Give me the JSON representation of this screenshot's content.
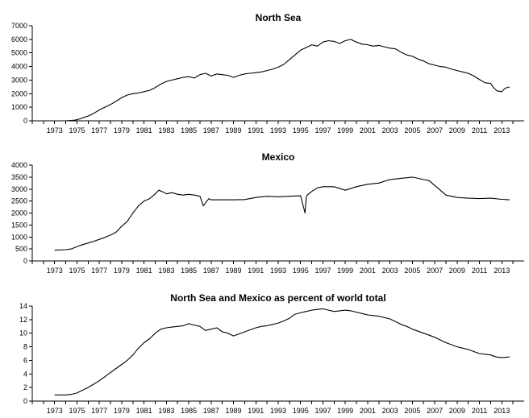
{
  "chart_data": [
    {
      "type": "line",
      "title": "North Sea",
      "xlabel": "",
      "ylabel": "",
      "xlim": [
        1971,
        2015
      ],
      "ylim": [
        0,
        7000
      ],
      "grid": false,
      "xticks": [
        1973,
        1975,
        1977,
        1979,
        1981,
        1983,
        1985,
        1987,
        1989,
        1991,
        1993,
        1995,
        1997,
        1999,
        2001,
        2003,
        2005,
        2007,
        2009,
        2011,
        2013
      ],
      "xtick_labels": [
        "1973",
        "1975",
        "1977",
        "1979",
        "1981",
        "1983",
        "1985",
        "1987",
        "1989",
        "1991",
        "1993",
        "1995",
        "1997",
        "1999",
        "2001",
        "2003",
        "2005",
        "2007",
        "2009",
        "2011",
        "2013"
      ],
      "yticks": [
        0,
        1000,
        2000,
        3000,
        4000,
        5000,
        6000,
        7000
      ],
      "ytick_labels": [
        "0",
        "1000",
        "2000",
        "3000",
        "4000",
        "5000",
        "6000",
        "7000"
      ],
      "series": [
        {
          "x": [
            1973,
            1974,
            1974.8,
            1975.3,
            1975.6,
            1976,
            1976.5,
            1977,
            1977.5,
            1978,
            1978.5,
            1979,
            1979.5,
            1980,
            1980.5,
            1981,
            1981.5,
            1982,
            1982.5,
            1983,
            1983.5,
            1984,
            1984.5,
            1985,
            1985.5,
            1986,
            1986.5,
            1987,
            1987.5,
            1988,
            1988.5,
            1989,
            1989.5,
            1990,
            1990.5,
            1991,
            1991.5,
            1992,
            1992.5,
            1993,
            1993.5,
            1994,
            1994.5,
            1995,
            1995.5,
            1996,
            1996.5,
            1997,
            1997.5,
            1998,
            1998.5,
            1999,
            1999.5,
            2000,
            2000.5,
            2001,
            2001.5,
            2002,
            2002.5,
            2003,
            2003.5,
            2004,
            2004.5,
            2005,
            2005.5,
            2006,
            2006.5,
            2007,
            2007.5,
            2008,
            2008.5,
            2009,
            2009.5,
            2010,
            2010.5,
            2011,
            2011.5,
            2012,
            2012.3,
            2012.6,
            2013,
            2013.3,
            2013.7
          ],
          "y": [
            0,
            0,
            50,
            150,
            250,
            350,
            550,
            800,
            1000,
            1200,
            1450,
            1700,
            1900,
            2000,
            2050,
            2150,
            2250,
            2450,
            2700,
            2900,
            3000,
            3100,
            3200,
            3250,
            3150,
            3400,
            3500,
            3300,
            3450,
            3400,
            3350,
            3200,
            3350,
            3450,
            3500,
            3550,
            3600,
            3700,
            3800,
            3950,
            4150,
            4500,
            4850,
            5200,
            5400,
            5600,
            5500,
            5800,
            5900,
            5850,
            5700,
            5900,
            6000,
            5800,
            5650,
            5600,
            5500,
            5550,
            5450,
            5350,
            5300,
            5050,
            4850,
            4750,
            4550,
            4400,
            4200,
            4100,
            4000,
            3950,
            3800,
            3700,
            3600,
            3500,
            3300,
            3050,
            2800,
            2750,
            2400,
            2200,
            2150,
            2400,
            2500
          ]
        }
      ]
    },
    {
      "type": "line",
      "title": "Mexico",
      "xlabel": "",
      "ylabel": "",
      "xlim": [
        1971,
        2015
      ],
      "ylim": [
        0,
        4000
      ],
      "grid": false,
      "xticks": [
        1973,
        1975,
        1977,
        1979,
        1981,
        1983,
        1985,
        1987,
        1989,
        1991,
        1993,
        1995,
        1997,
        1999,
        2001,
        2003,
        2005,
        2007,
        2009,
        2011,
        2013
      ],
      "xtick_labels": [
        "1973",
        "1975",
        "1977",
        "1979",
        "1981",
        "1983",
        "1985",
        "1987",
        "1989",
        "1991",
        "1993",
        "1995",
        "1997",
        "1999",
        "2001",
        "2003",
        "2005",
        "2007",
        "2009",
        "2011",
        "2013"
      ],
      "yticks": [
        0,
        500,
        1000,
        1500,
        2000,
        2500,
        3000,
        3500,
        4000
      ],
      "ytick_labels": [
        "0",
        "500",
        "1000",
        "1500",
        "2000",
        "2500",
        "3000",
        "3500",
        "4000"
      ],
      "series": [
        {
          "x": [
            1973,
            1974,
            1974.5,
            1975,
            1975.5,
            1976,
            1976.5,
            1977,
            1977.5,
            1978,
            1978.5,
            1979,
            1979.5,
            1980,
            1980.5,
            1981,
            1981.5,
            1982,
            1982.3,
            1982.6,
            1983,
            1983.5,
            1984,
            1984.5,
            1985,
            1985.5,
            1986,
            1986.3,
            1986.8,
            1987,
            1988,
            1989,
            1990,
            1991,
            1992,
            1993,
            1994,
            1995,
            1995.4,
            1995.5,
            1995.6,
            1996,
            1996.5,
            1997,
            1998,
            1999,
            2000,
            2001,
            2002,
            2003,
            2004,
            2005,
            2006,
            2006.5,
            2007,
            2007.5,
            2008,
            2008.5,
            2009,
            2010,
            2011,
            2012,
            2013,
            2013.7
          ],
          "y": [
            450,
            470,
            500,
            600,
            680,
            750,
            820,
            900,
            980,
            1080,
            1200,
            1450,
            1650,
            2000,
            2300,
            2500,
            2600,
            2800,
            2950,
            2900,
            2800,
            2850,
            2780,
            2750,
            2780,
            2750,
            2700,
            2300,
            2600,
            2550,
            2550,
            2550,
            2560,
            2650,
            2700,
            2680,
            2700,
            2720,
            2000,
            2650,
            2750,
            2900,
            3050,
            3100,
            3100,
            2950,
            3100,
            3200,
            3250,
            3400,
            3450,
            3500,
            3400,
            3350,
            3150,
            2950,
            2750,
            2700,
            2650,
            2620,
            2600,
            2620,
            2570,
            2550
          ]
        }
      ]
    },
    {
      "type": "line",
      "title": "North Sea and Mexico as percent of world total",
      "xlabel": "",
      "ylabel": "",
      "xlim": [
        1971,
        2015
      ],
      "ylim": [
        0,
        14
      ],
      "grid": false,
      "xticks": [
        1973,
        1975,
        1977,
        1979,
        1981,
        1983,
        1985,
        1987,
        1989,
        1991,
        1993,
        1995,
        1997,
        1999,
        2001,
        2003,
        2005,
        2007,
        2009,
        2011,
        2013
      ],
      "xtick_labels": [
        "1973",
        "1975",
        "1977",
        "1979",
        "1981",
        "1983",
        "1985",
        "1987",
        "1989",
        "1991",
        "1993",
        "1995",
        "1997",
        "1999",
        "2001",
        "2003",
        "2005",
        "2007",
        "2009",
        "2011",
        "2013"
      ],
      "yticks": [
        0,
        2,
        4,
        6,
        8,
        10,
        12,
        14
      ],
      "ytick_labels": [
        "0",
        "2",
        "4",
        "6",
        "8",
        "10",
        "12",
        "14"
      ],
      "series": [
        {
          "x": [
            1973,
            1974,
            1974.5,
            1975,
            1975.5,
            1976,
            1976.5,
            1977,
            1977.5,
            1978,
            1978.5,
            1979,
            1979.5,
            1980,
            1980.5,
            1981,
            1981.5,
            1982,
            1982.5,
            1983,
            1983.5,
            1984,
            1984.5,
            1985,
            1985.5,
            1986,
            1986.5,
            1987,
            1987.5,
            1988,
            1988.5,
            1989,
            1989.5,
            1990,
            1990.5,
            1991,
            1991.5,
            1992,
            1992.5,
            1993,
            1993.5,
            1994,
            1994.5,
            1995,
            1995.5,
            1996,
            1996.5,
            1997,
            1997.5,
            1998,
            1998.5,
            1999,
            1999.5,
            2000,
            2000.5,
            2001,
            2001.5,
            2002,
            2002.5,
            2003,
            2003.5,
            2004,
            2004.5,
            2005,
            2005.5,
            2006,
            2006.5,
            2007,
            2007.5,
            2008,
            2008.5,
            2009,
            2009.5,
            2010,
            2010.5,
            2011,
            2011.5,
            2012,
            2012.5,
            2013,
            2013.7
          ],
          "y": [
            0.9,
            0.9,
            1.0,
            1.2,
            1.6,
            2.0,
            2.5,
            3.0,
            3.6,
            4.2,
            4.8,
            5.4,
            6.0,
            6.8,
            7.8,
            8.6,
            9.2,
            10.0,
            10.6,
            10.8,
            10.9,
            11.0,
            11.1,
            11.4,
            11.2,
            11.0,
            10.4,
            10.6,
            10.8,
            10.2,
            10.0,
            9.6,
            9.9,
            10.2,
            10.5,
            10.8,
            11.0,
            11.1,
            11.3,
            11.5,
            11.8,
            12.2,
            12.8,
            13.0,
            13.2,
            13.4,
            13.5,
            13.6,
            13.4,
            13.2,
            13.3,
            13.4,
            13.3,
            13.1,
            12.9,
            12.7,
            12.6,
            12.5,
            12.3,
            12.1,
            11.7,
            11.3,
            11.0,
            10.6,
            10.3,
            10.0,
            9.7,
            9.4,
            9.0,
            8.6,
            8.3,
            8.0,
            7.8,
            7.6,
            7.3,
            7.0,
            6.9,
            6.8,
            6.5,
            6.4,
            6.5
          ]
        }
      ]
    }
  ]
}
